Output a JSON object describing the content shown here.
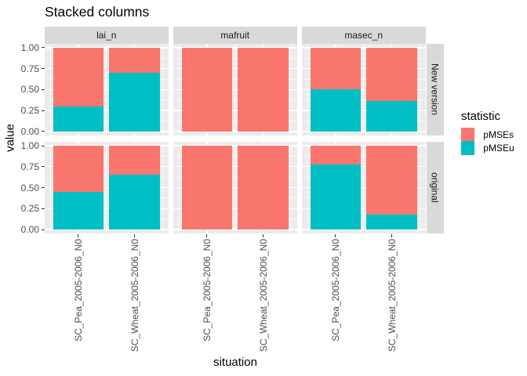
{
  "chart_data": {
    "type": "bar",
    "variant": "stacked-column-facet-grid",
    "title": "Stacked columns",
    "xlabel": "situation",
    "ylabel": "value",
    "legend_title": "statistic",
    "legend_position": "right",
    "ylim": [
      0,
      1
    ],
    "y_ticks": [
      0,
      0.25,
      0.5,
      0.75,
      1
    ],
    "y_tick_labels": [
      "0.00",
      "0.25",
      "0.50",
      "0.75",
      "1.00"
    ],
    "categories": [
      "SC_Pea_2005-2006_N0",
      "SC_Wheat_2005-2006_N0"
    ],
    "col_facets": [
      "lai_n",
      "mafruit",
      "masec_n"
    ],
    "row_facets": [
      "New version",
      "original"
    ],
    "series": [
      {
        "name": "pMSEs",
        "color": "#F8766D"
      },
      {
        "name": "pMSEu",
        "color": "#00BFC4"
      }
    ],
    "panels": [
      {
        "row": "New version",
        "col": "lai_n",
        "pMSEu": [
          0.3,
          0.7
        ],
        "pMSEs": [
          0.7,
          0.3
        ]
      },
      {
        "row": "New version",
        "col": "mafruit",
        "pMSEu": [
          0.0,
          0.0
        ],
        "pMSEs": [
          1.0,
          1.0
        ]
      },
      {
        "row": "New version",
        "col": "masec_n",
        "pMSEu": [
          0.5,
          0.36
        ],
        "pMSEs": [
          0.5,
          0.64
        ]
      },
      {
        "row": "original",
        "col": "lai_n",
        "pMSEu": [
          0.45,
          0.65
        ],
        "pMSEs": [
          0.55,
          0.35
        ]
      },
      {
        "row": "original",
        "col": "mafruit",
        "pMSEu": [
          0.0,
          0.0
        ],
        "pMSEs": [
          1.0,
          1.0
        ]
      },
      {
        "row": "original",
        "col": "masec_n",
        "pMSEu": [
          0.78,
          0.18
        ],
        "pMSEs": [
          0.22,
          0.82
        ]
      }
    ],
    "theme": {
      "panel_bg": "#EBEBEB",
      "strip_bg": "#D9D9D9",
      "grid_color": "#FFFFFF",
      "axis_text_color": "#4D4D4D",
      "strip_text_color": "#1A1A1A",
      "tick_color": "#333333"
    }
  }
}
